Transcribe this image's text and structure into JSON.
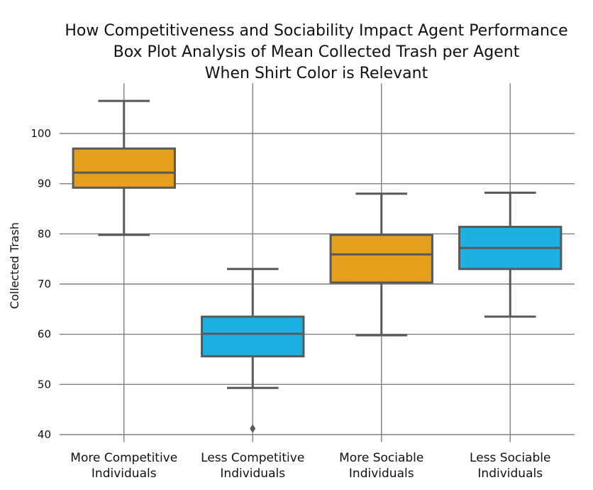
{
  "chart_data": {
    "type": "box",
    "title": [
      "How Competitiveness and Sociability Impact Agent Performance",
      "Box Plot Analysis of Mean Collected Trash per Agent",
      "When Shirt Color is Relevant"
    ],
    "xlabel": "",
    "ylabel": "Collected Trash",
    "ylim": [
      38.5,
      110
    ],
    "yticks": [
      40,
      50,
      60,
      70,
      80,
      90,
      100
    ],
    "grid": true,
    "categories": [
      [
        "More Competitive",
        "Individuals"
      ],
      [
        "Less Competitive",
        "Individuals"
      ],
      [
        "More Sociable",
        "Individuals"
      ],
      [
        "Less Sociable",
        "Individuals"
      ]
    ],
    "boxes": [
      {
        "whisker_low": 79.8,
        "q1": 89.2,
        "median": 92.2,
        "q3": 97.0,
        "whisker_high": 106.5,
        "outliers": [],
        "color": "#E69F1C"
      },
      {
        "whisker_low": 49.3,
        "q1": 55.6,
        "median": 60.1,
        "q3": 63.5,
        "whisker_high": 73.0,
        "outliers": [
          41.2
        ],
        "color": "#1DB1E3"
      },
      {
        "whisker_low": 59.8,
        "q1": 70.3,
        "median": 75.9,
        "q3": 79.8,
        "whisker_high": 88.0,
        "outliers": [],
        "color": "#E69F1C"
      },
      {
        "whisker_low": 63.5,
        "q1": 73.0,
        "median": 77.2,
        "q3": 81.4,
        "whisker_high": 88.2,
        "outliers": [],
        "color": "#1DB1E3"
      }
    ],
    "colors": {
      "line": "#595959",
      "grid": "#808080"
    }
  }
}
